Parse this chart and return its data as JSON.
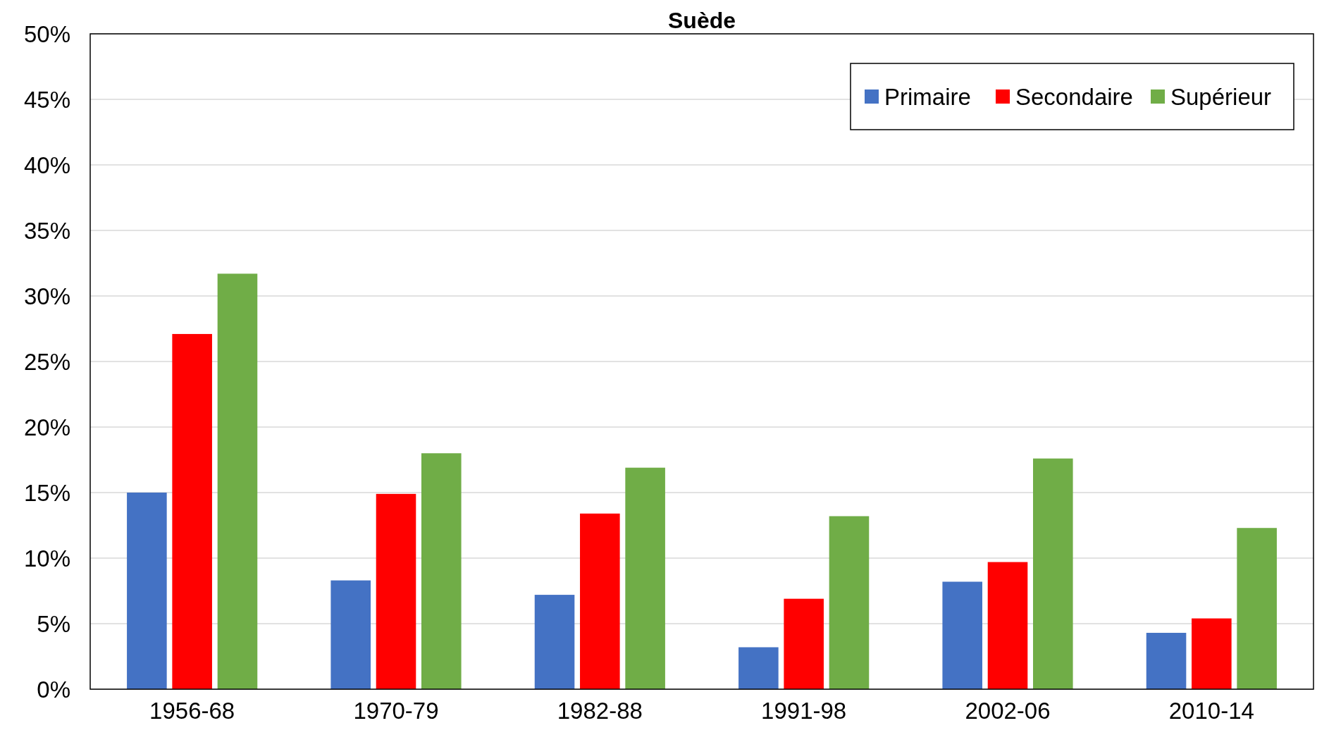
{
  "chart_data": {
    "type": "bar",
    "title": "Suède",
    "categories": [
      "1956-68",
      "1970-79",
      "1982-88",
      "1991-98",
      "2002-06",
      "2010-14"
    ],
    "series": [
      {
        "name": "Primaire",
        "color": "#4472c4",
        "values": [
          15.0,
          8.3,
          7.2,
          3.2,
          8.2,
          4.3
        ]
      },
      {
        "name": "Secondaire",
        "color": "#ff0000",
        "values": [
          27.1,
          14.9,
          13.4,
          6.9,
          9.7,
          5.4
        ]
      },
      {
        "name": "Supérieur",
        "color": "#70ad47",
        "values": [
          31.7,
          18.0,
          16.9,
          13.2,
          17.6,
          12.3
        ]
      }
    ],
    "ylim": [
      0,
      50
    ],
    "yticks": [
      {
        "value": 0,
        "label": "0%"
      },
      {
        "value": 5,
        "label": "5%"
      },
      {
        "value": 10,
        "label": "10%"
      },
      {
        "value": 15,
        "label": "15%"
      },
      {
        "value": 20,
        "label": "20%"
      },
      {
        "value": 25,
        "label": "25%"
      },
      {
        "value": 30,
        "label": "30%"
      },
      {
        "value": 35,
        "label": "35%"
      },
      {
        "value": 40,
        "label": "40%"
      },
      {
        "value": 45,
        "label": "45%"
      },
      {
        "value": 50,
        "label": "50%"
      }
    ],
    "grid": "y",
    "legend": "top right"
  }
}
